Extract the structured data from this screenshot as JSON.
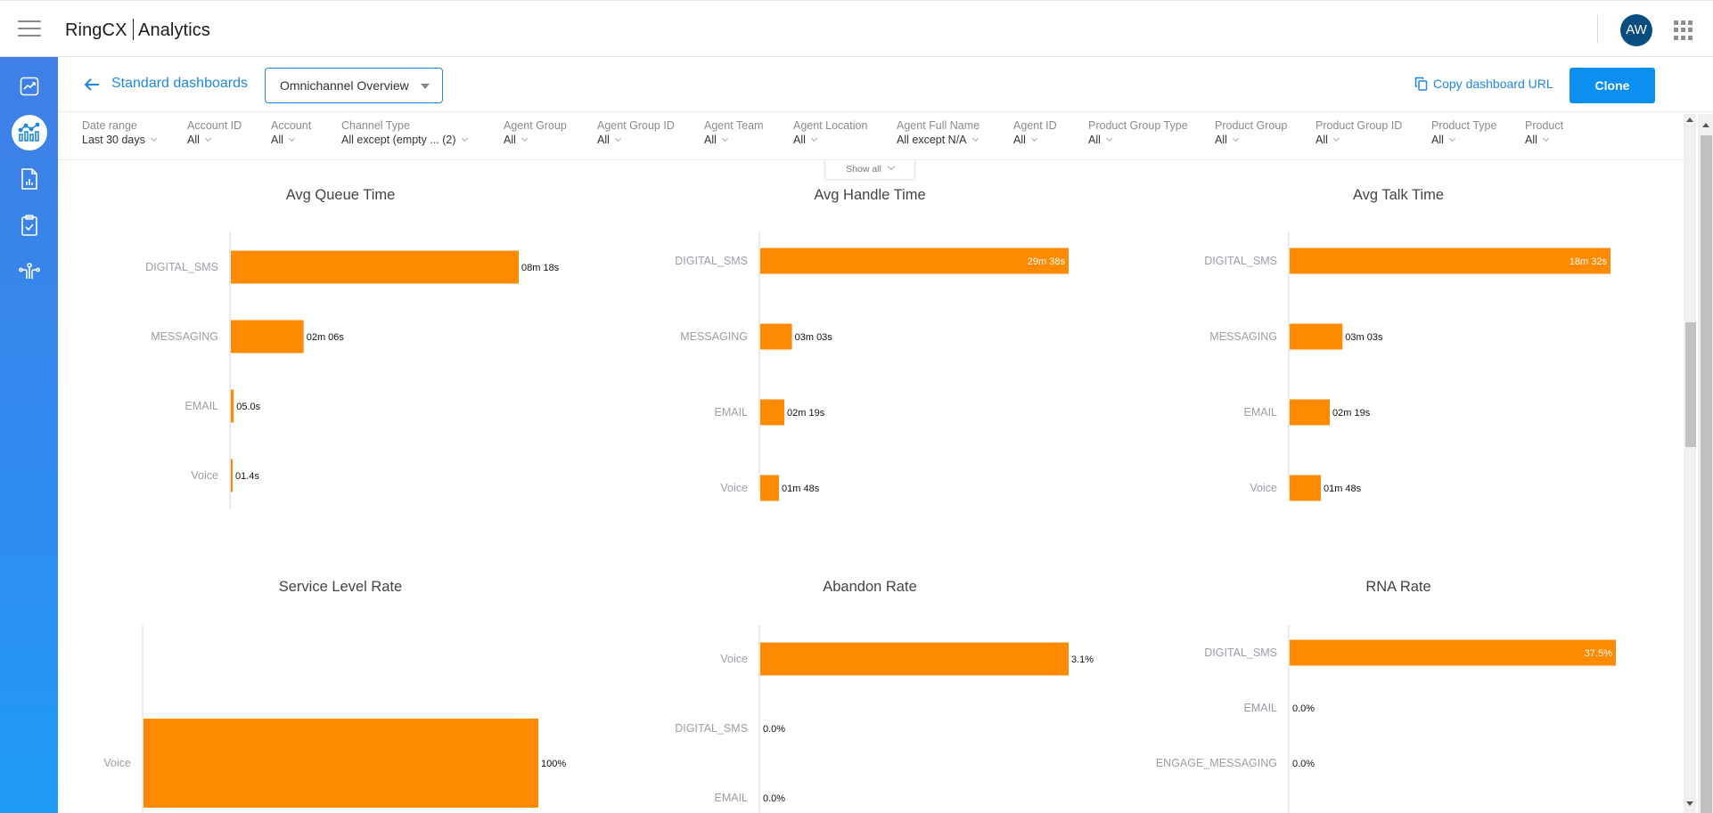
{
  "header": {
    "brand_left": "RingCX",
    "brand_right": "Analytics",
    "avatar_initials": "AW"
  },
  "sidebar": {
    "items": [
      {
        "name": "sidebar-item-trends",
        "icon": "trend-chart-icon",
        "active": false
      },
      {
        "name": "sidebar-item-dashboards",
        "icon": "dashboard-chart-icon",
        "active": true
      },
      {
        "name": "sidebar-item-reports",
        "icon": "report-document-icon",
        "active": false
      },
      {
        "name": "sidebar-item-tasks",
        "icon": "clipboard-check-icon",
        "active": false
      },
      {
        "name": "sidebar-item-integrations",
        "icon": "circuit-icon",
        "active": false
      }
    ]
  },
  "toolbar": {
    "breadcrumb": "Standard dashboards",
    "dashboard_select": "Omnichannel Overview",
    "copy_url_label": "Copy dashboard URL",
    "clone_label": "Clone",
    "more_label": "•••"
  },
  "filters": [
    {
      "label": "Date range",
      "value": "Last 30 days"
    },
    {
      "label": "Account ID",
      "value": "All"
    },
    {
      "label": "Account",
      "value": "All"
    },
    {
      "label": "Channel Type",
      "value": "All except (empty ... (2)"
    },
    {
      "label": "Agent Group",
      "value": "All"
    },
    {
      "label": "Agent Group ID",
      "value": "All"
    },
    {
      "label": "Agent Team",
      "value": "All"
    },
    {
      "label": "Agent Location",
      "value": "All"
    },
    {
      "label": "Agent Full Name",
      "value": "All except N/A"
    },
    {
      "label": "Agent ID",
      "value": "All"
    },
    {
      "label": "Product Group Type",
      "value": "All"
    },
    {
      "label": "Product Group",
      "value": "All"
    },
    {
      "label": "Product Group ID",
      "value": "All"
    },
    {
      "label": "Product Type",
      "value": "All"
    },
    {
      "label": "Product",
      "value": "All"
    }
  ],
  "show_all_label": "Show all",
  "colors": {
    "bar": "#fd8a00",
    "accent": "#1e88e5",
    "clone_button": "#0b8ff0",
    "avatar": "#0a4e7f"
  },
  "chart_data": [
    {
      "type": "bar",
      "orientation": "horizontal",
      "title": "Avg Queue Time",
      "unit": "seconds",
      "categories": [
        "DIGITAL_SMS",
        "MESSAGING",
        "EMAIL",
        "Voice"
      ],
      "values": [
        498,
        126,
        5.0,
        1.4
      ],
      "labels": [
        "08m 18s",
        "02m 06s",
        "05.0s",
        "01.4s"
      ]
    },
    {
      "type": "bar",
      "orientation": "horizontal",
      "title": "Avg Handle Time",
      "unit": "seconds",
      "categories": [
        "DIGITAL_SMS",
        "MESSAGING",
        "EMAIL",
        "Voice"
      ],
      "values": [
        1778,
        183,
        139,
        108
      ],
      "labels": [
        "29m 38s",
        "03m 03s",
        "02m 19s",
        "01m 48s"
      ]
    },
    {
      "type": "bar",
      "orientation": "horizontal",
      "title": "Avg Talk Time",
      "unit": "seconds",
      "categories": [
        "DIGITAL_SMS",
        "MESSAGING",
        "EMAIL",
        "Voice"
      ],
      "values": [
        1112,
        183,
        139,
        108
      ],
      "labels": [
        "18m 32s",
        "03m 03s",
        "02m 19s",
        "01m 48s"
      ]
    },
    {
      "type": "bar",
      "orientation": "horizontal",
      "title": "Service Level Rate",
      "unit": "percent",
      "categories": [
        "Voice"
      ],
      "values": [
        100
      ],
      "labels": [
        "100%"
      ]
    },
    {
      "type": "bar",
      "orientation": "horizontal",
      "title": "Abandon Rate",
      "unit": "percent",
      "categories": [
        "Voice",
        "DIGITAL_SMS",
        "EMAIL"
      ],
      "values": [
        3.1,
        0.0,
        0.0
      ],
      "labels": [
        "3.1%",
        "0.0%",
        "0.0%"
      ]
    },
    {
      "type": "bar",
      "orientation": "horizontal",
      "title": "RNA Rate",
      "unit": "percent",
      "categories": [
        "DIGITAL_SMS",
        "EMAIL",
        "ENGAGE_MESSAGING"
      ],
      "values": [
        37.5,
        0.0,
        0.0
      ],
      "labels": [
        "37.5%",
        "0.0%",
        "0.0%"
      ]
    }
  ]
}
